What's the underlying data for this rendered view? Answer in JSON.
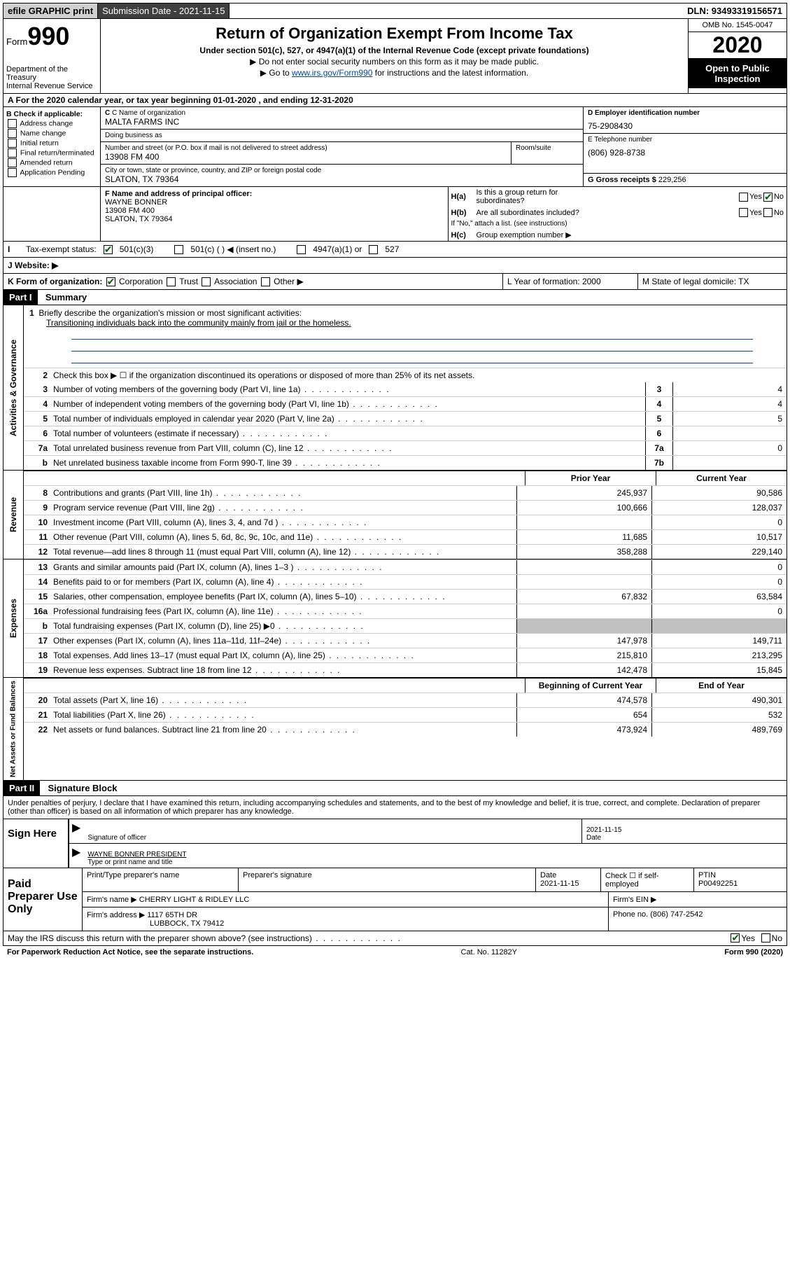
{
  "topbar": {
    "efile": "efile GRAPHIC print",
    "submission_label": "Submission Date - 2021-11-15",
    "dln": "DLN: 93493319156571"
  },
  "header": {
    "form_prefix": "Form",
    "form_number": "990",
    "dept": "Department of the Treasury\nInternal Revenue Service",
    "title": "Return of Organization Exempt From Income Tax",
    "subtitle": "Under section 501(c), 527, or 4947(a)(1) of the Internal Revenue Code (except private foundations)",
    "instr1": "▶ Do not enter social security numbers on this form as it may be made public.",
    "instr2_pre": "▶ Go to ",
    "instr2_link": "www.irs.gov/Form990",
    "instr2_post": " for instructions and the latest information.",
    "omb": "OMB No. 1545-0047",
    "year": "2020",
    "open": "Open to Public Inspection"
  },
  "row_a": "A For the 2020 calendar year, or tax year beginning 01-01-2020    , and ending 12-31-2020",
  "col_b": {
    "header": "B Check if applicable:",
    "opts": [
      "Address change",
      "Name change",
      "Initial return",
      "Final return/terminated",
      "Amended return",
      "Application Pending"
    ]
  },
  "c": {
    "name_label": "C Name of organization",
    "name": "MALTA FARMS INC",
    "dba_label": "Doing business as",
    "dba": "",
    "street_label": "Number and street (or P.O. box if mail is not delivered to street address)",
    "room_label": "Room/suite",
    "street": "13908 FM 400",
    "city_label": "City or town, state or province, country, and ZIP or foreign postal code",
    "city": "SLATON, TX  79364"
  },
  "d": {
    "label": "D Employer identification number",
    "value": "75-2908430"
  },
  "e": {
    "label": "E Telephone number",
    "value": "(806) 928-8738"
  },
  "g": {
    "label": "G Gross receipts $",
    "value": "229,256"
  },
  "f": {
    "label": "F  Name and address of principal officer:",
    "name": "WAYNE BONNER",
    "street": "13908 FM 400",
    "city": "SLATON, TX  79364"
  },
  "h": {
    "a_label": "Is this a group return for",
    "a_sub": "subordinates?",
    "a_no_checked": true,
    "b_label": "Are all subordinates included?",
    "b_note": "If \"No,\" attach a list. (see instructions)",
    "c_label": "Group exemption number ▶"
  },
  "i": {
    "label": "Tax-exempt status:",
    "opts": [
      "501(c)(3)",
      "501(c) (   ) ◀ (insert no.)",
      "4947(a)(1) or",
      "527"
    ]
  },
  "j": {
    "label": "J    Website: ▶"
  },
  "k": {
    "label": "K Form of organization:",
    "opts": [
      "Corporation",
      "Trust",
      "Association",
      "Other ▶"
    ],
    "l": "L Year of formation: 2000",
    "m": "M State of legal domicile: TX"
  },
  "part1": {
    "header": "Part I",
    "title": "Summary",
    "line1": "Briefly describe the organization's mission or most significant activities:",
    "mission": "Transitioning individuals back into the community mainly from jail or the homeless.",
    "line2": "Check this box ▶ ☐  if the organization discontinued its operations or disposed of more than 25% of its net assets."
  },
  "gov_lines": [
    {
      "n": "3",
      "d": "Number of voting members of the governing body (Part VI, line 1a)",
      "b": "3",
      "v": "4"
    },
    {
      "n": "4",
      "d": "Number of independent voting members of the governing body (Part VI, line 1b)",
      "b": "4",
      "v": "4"
    },
    {
      "n": "5",
      "d": "Total number of individuals employed in calendar year 2020 (Part V, line 2a)",
      "b": "5",
      "v": "5"
    },
    {
      "n": "6",
      "d": "Total number of volunteers (estimate if necessary)",
      "b": "6",
      "v": ""
    },
    {
      "n": "7a",
      "d": "Total unrelated business revenue from Part VIII, column (C), line 12",
      "b": "7a",
      "v": "0"
    },
    {
      "n": "b",
      "d": "Net unrelated business taxable income from Form 990-T, line 39",
      "b": "7b",
      "v": ""
    }
  ],
  "col_headers": {
    "prior": "Prior Year",
    "current": "Current Year",
    "beg": "Beginning of Current Year",
    "end": "End of Year"
  },
  "revenue": [
    {
      "n": "8",
      "d": "Contributions and grants (Part VIII, line 1h)",
      "p": "245,937",
      "c": "90,586"
    },
    {
      "n": "9",
      "d": "Program service revenue (Part VIII, line 2g)",
      "p": "100,666",
      "c": "128,037"
    },
    {
      "n": "10",
      "d": "Investment income (Part VIII, column (A), lines 3, 4, and 7d )",
      "p": "",
      "c": "0"
    },
    {
      "n": "11",
      "d": "Other revenue (Part VIII, column (A), lines 5, 6d, 8c, 9c, 10c, and 11e)",
      "p": "11,685",
      "c": "10,517"
    },
    {
      "n": "12",
      "d": "Total revenue—add lines 8 through 11 (must equal Part VIII, column (A), line 12)",
      "p": "358,288",
      "c": "229,140"
    }
  ],
  "expenses": [
    {
      "n": "13",
      "d": "Grants and similar amounts paid (Part IX, column (A), lines 1–3 )",
      "p": "",
      "c": "0"
    },
    {
      "n": "14",
      "d": "Benefits paid to or for members (Part IX, column (A), line 4)",
      "p": "",
      "c": "0"
    },
    {
      "n": "15",
      "d": "Salaries, other compensation, employee benefits (Part IX, column (A), lines 5–10)",
      "p": "67,832",
      "c": "63,584"
    },
    {
      "n": "16a",
      "d": "Professional fundraising fees (Part IX, column (A), line 11e)",
      "p": "",
      "c": "0"
    },
    {
      "n": "b",
      "d": "Total fundraising expenses (Part IX, column (D), line 25) ▶0",
      "p": "shade",
      "c": "shade"
    },
    {
      "n": "17",
      "d": "Other expenses (Part IX, column (A), lines 11a–11d, 11f–24e)",
      "p": "147,978",
      "c": "149,711"
    },
    {
      "n": "18",
      "d": "Total expenses. Add lines 13–17 (must equal Part IX, column (A), line 25)",
      "p": "215,810",
      "c": "213,295"
    },
    {
      "n": "19",
      "d": "Revenue less expenses. Subtract line 18 from line 12",
      "p": "142,478",
      "c": "15,845"
    }
  ],
  "netassets": [
    {
      "n": "20",
      "d": "Total assets (Part X, line 16)",
      "p": "474,578",
      "c": "490,301"
    },
    {
      "n": "21",
      "d": "Total liabilities (Part X, line 26)",
      "p": "654",
      "c": "532"
    },
    {
      "n": "22",
      "d": "Net assets or fund balances. Subtract line 21 from line 20",
      "p": "473,924",
      "c": "489,769"
    }
  ],
  "part2": {
    "header": "Part II",
    "title": "Signature Block",
    "penalty": "Under penalties of perjury, I declare that I have examined this return, including accompanying schedules and statements, and to the best of my knowledge and belief, it is true, correct, and complete. Declaration of preparer (other than officer) is based on all information of which preparer has any knowledge."
  },
  "sign": {
    "label": "Sign Here",
    "sig_officer": "Signature of officer",
    "date": "2021-11-15",
    "date_label": "Date",
    "name_title": "WAYNE BONNER PRESIDENT",
    "type_label": "Type or print name and title"
  },
  "prep": {
    "label": "Paid Preparer Use Only",
    "h_name": "Print/Type preparer's name",
    "h_sig": "Preparer's signature",
    "h_date": "Date",
    "date": "2021-11-15",
    "h_check": "Check ☐  if self-employed",
    "h_ptin": "PTIN",
    "ptin": "P00492251",
    "firm_label": "Firm's name    ▶",
    "firm": "CHERRY LIGHT & RIDLEY LLC",
    "ein_label": "Firm's EIN ▶",
    "addr_label": "Firm's address ▶",
    "addr1": "1117 65TH DR",
    "addr2": "LUBBOCK, TX  79412",
    "phone_label": "Phone no.",
    "phone": "(806) 747-2542"
  },
  "discuss": "May the IRS discuss this return with the preparer shown above? (see instructions)",
  "footer": {
    "left": "For Paperwork Reduction Act Notice, see the separate instructions.",
    "mid": "Cat. No. 11282Y",
    "right": "Form 990 (2020)"
  },
  "vlabels": {
    "gov": "Activities & Governance",
    "rev": "Revenue",
    "exp": "Expenses",
    "net": "Net Assets or Fund Balances"
  },
  "yn": {
    "yes": "Yes",
    "no": "No"
  }
}
